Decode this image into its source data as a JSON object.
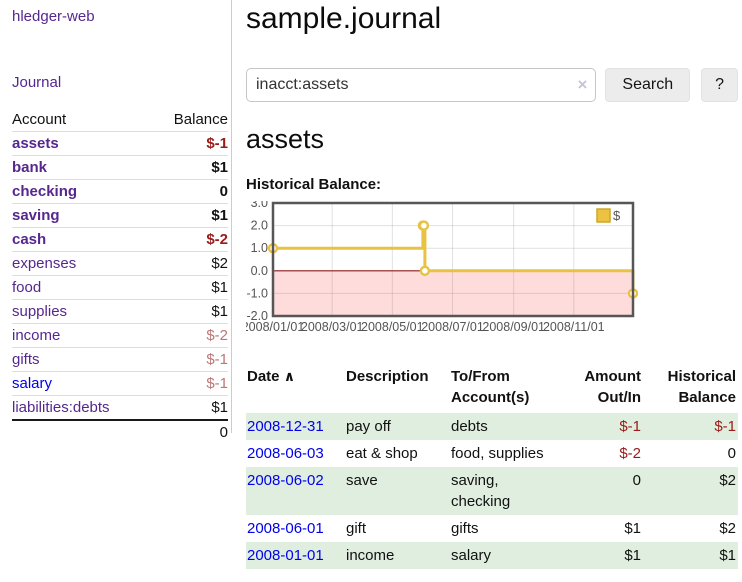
{
  "app": {
    "title": "hledger-web",
    "nav_journal": "Journal"
  },
  "colors": {
    "link_purple": "#56278f",
    "link_blue": "#0000ee",
    "negative_strong": "#9a1a1a",
    "negative_muted": "#bd7575",
    "row_stripe_green": "#dfeede"
  },
  "sidebar": {
    "col_account": "Account",
    "col_balance": "Balance",
    "rows": [
      {
        "account": "assets",
        "balance": "$-1",
        "level": 0,
        "bold": true,
        "neg": "strong",
        "link": "purple"
      },
      {
        "account": "bank",
        "balance": "$1",
        "level": 1,
        "bold": true,
        "neg": "none",
        "link": "purple"
      },
      {
        "account": "checking",
        "balance": "0",
        "level": 2,
        "bold": true,
        "neg": "none",
        "link": "purple"
      },
      {
        "account": "saving",
        "balance": "$1",
        "level": 2,
        "bold": true,
        "neg": "none",
        "link": "purple"
      },
      {
        "account": "cash",
        "balance": "$-2",
        "level": 1,
        "bold": true,
        "neg": "strong",
        "link": "purple"
      },
      {
        "account": "expenses",
        "balance": "$2",
        "level": 0,
        "bold": false,
        "neg": "none",
        "link": "purple"
      },
      {
        "account": "food",
        "balance": "$1",
        "level": 1,
        "bold": false,
        "neg": "none",
        "link": "purple"
      },
      {
        "account": "supplies",
        "balance": "$1",
        "level": 1,
        "bold": false,
        "neg": "none",
        "link": "purple"
      },
      {
        "account": "income",
        "balance": "$-2",
        "level": 0,
        "bold": false,
        "neg": "muted",
        "link": "purple"
      },
      {
        "account": "gifts",
        "balance": "$-1",
        "level": 1,
        "bold": false,
        "neg": "muted",
        "link": "purple"
      },
      {
        "account": "salary",
        "balance": "$-1",
        "level": 1,
        "bold": false,
        "neg": "muted",
        "link": "blue"
      },
      {
        "account": "liabilities:debts",
        "balance": "$1",
        "level": 0,
        "bold": false,
        "neg": "none",
        "link": "purple"
      }
    ],
    "total": "0"
  },
  "header": {
    "title": "sample.journal"
  },
  "search": {
    "value": "inacct:assets",
    "clear_icon": "×",
    "button": "Search",
    "help": "?"
  },
  "content": {
    "heading": "assets",
    "chart_title": "Historical Balance:"
  },
  "chart_data": {
    "type": "line",
    "step": true,
    "title": "Historical Balance",
    "legend": [
      {
        "label": "$",
        "color": "#edc240"
      }
    ],
    "legend_position": "top-right",
    "xmin": "2008-01-01",
    "xmax": "2008-12-31",
    "ylim": [
      -2,
      3
    ],
    "yticks": [
      {
        "v": 3,
        "label": "3.0"
      },
      {
        "v": 2,
        "label": "2.0"
      },
      {
        "v": 1,
        "label": "1.0"
      },
      {
        "v": 0,
        "label": "0.0"
      },
      {
        "v": -1,
        "label": "-1.0"
      },
      {
        "v": -2,
        "label": "-2.0"
      }
    ],
    "xticks": [
      {
        "date": "2008-01-01",
        "label": "2008/01/01"
      },
      {
        "date": "2008-03-01",
        "label": "2008/03/01"
      },
      {
        "date": "2008-05-01",
        "label": "2008/05/01"
      },
      {
        "date": "2008-07-01",
        "label": "2008/07/01"
      },
      {
        "date": "2008-09-01",
        "label": "2008/09/01"
      },
      {
        "date": "2008-11-01",
        "label": "2008/11/01"
      }
    ],
    "series": [
      {
        "name": "$",
        "points": [
          [
            "2008-01-01",
            1
          ],
          [
            "2008-06-01",
            2
          ],
          [
            "2008-06-02",
            2
          ],
          [
            "2008-06-03",
            0
          ],
          [
            "2008-12-31",
            -1
          ]
        ]
      }
    ],
    "grid": true,
    "colors": {
      "line": "#e8c240",
      "marker_fill": "#ffffff",
      "negative_region": "#ffdcdc",
      "zero_line": "#8b1a1a",
      "border": "#565656",
      "gridline": "rgba(120,120,120,0.22)",
      "tick_text": "#545454",
      "legend_box_border": "#cba82a"
    }
  },
  "register": {
    "col_date": "Date",
    "sort_icon": "∧",
    "col_description": "Description",
    "col_accounts": "To/From Account(s)",
    "col_amount": "Amount Out/In",
    "col_balance": "Historical Balance",
    "rows": [
      {
        "date": "2008-12-31",
        "description": "pay off",
        "accounts": "debts",
        "amount": "$-1",
        "balance": "$-1",
        "amount_neg": true,
        "balance_neg": true
      },
      {
        "date": "2008-06-03",
        "description": "eat & shop",
        "accounts": "food, supplies",
        "amount": "$-2",
        "balance": "0",
        "amount_neg": true,
        "balance_neg": false
      },
      {
        "date": "2008-06-02",
        "description": "save",
        "accounts": "saving, checking",
        "amount": "0",
        "balance": "$2",
        "amount_neg": false,
        "balance_neg": false
      },
      {
        "date": "2008-06-01",
        "description": "gift",
        "accounts": "gifts",
        "amount": "$1",
        "balance": "$2",
        "amount_neg": false,
        "balance_neg": false
      },
      {
        "date": "2008-01-01",
        "description": "income",
        "accounts": "salary",
        "amount": "$1",
        "balance": "$1",
        "amount_neg": false,
        "balance_neg": false
      }
    ]
  }
}
